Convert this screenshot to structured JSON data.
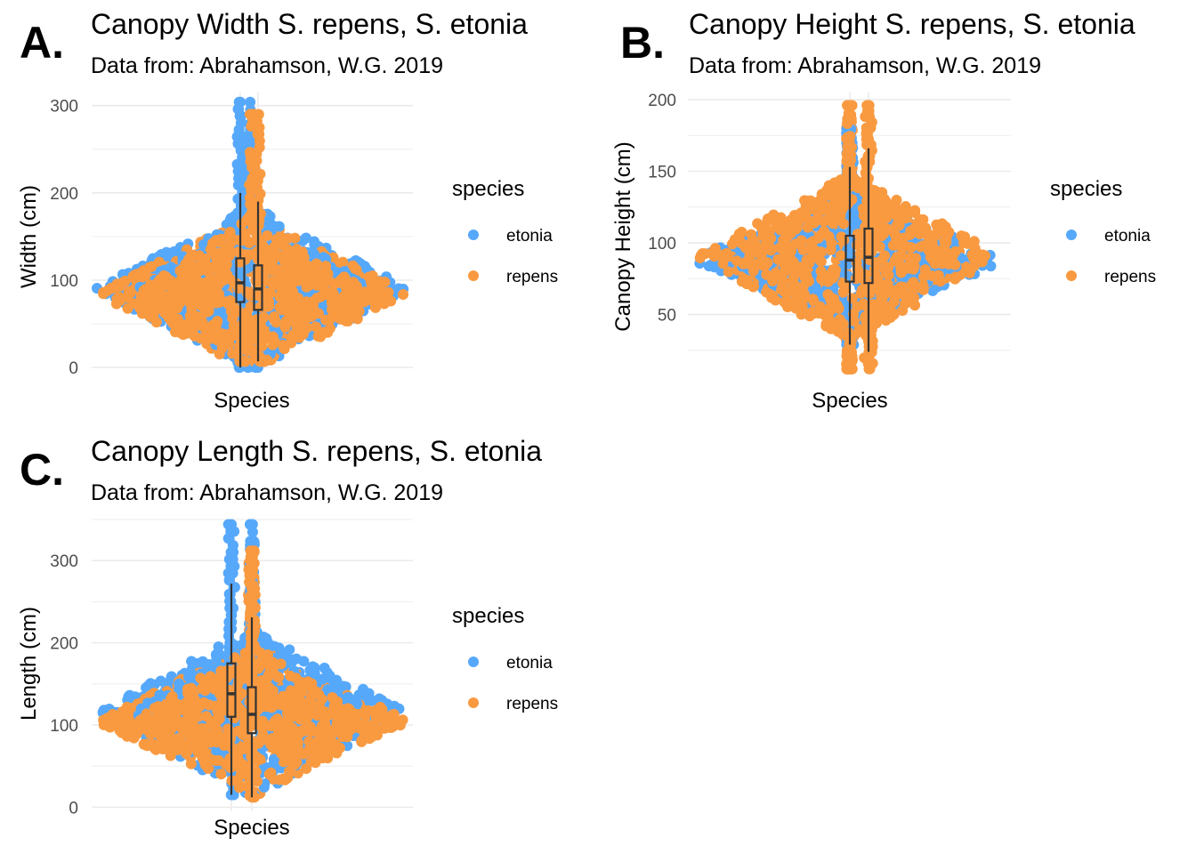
{
  "chart_data": [
    {
      "panel": "A.",
      "type": "scatter",
      "title": "Canopy  Width S. repens, S. etonia",
      "subtitle": "Data from: Abrahamson, W.G. 2019",
      "xlabel": "Species",
      "ylabel": "Width (cm)",
      "ylim": [
        -5,
        315
      ],
      "yticks": [
        0,
        100,
        200,
        300
      ],
      "grid": true,
      "legend": {
        "title": "species",
        "position": "right",
        "entries": [
          "etonia",
          "repens"
        ]
      },
      "colors": {
        "etonia": "#56a8fb",
        "repens": "#f99a41"
      },
      "series": [
        {
          "name": "etonia",
          "min": 0,
          "max": 304,
          "center": 90,
          "spread_low": 60,
          "spread_high": 110,
          "box": {
            "whisker_low": 0,
            "q1": 75,
            "median": 97,
            "q3": 125,
            "whisker_high": 200
          }
        },
        {
          "name": "repens",
          "min": 7,
          "max": 290,
          "center": 85,
          "spread_low": 55,
          "spread_high": 115,
          "box": {
            "whisker_low": 7,
            "q1": 66,
            "median": 90,
            "q3": 117,
            "whisker_high": 190
          }
        }
      ]
    },
    {
      "panel": "B.",
      "type": "scatter",
      "title": "Canopy Height S. repens, S. etonia",
      "subtitle": "Data from: Abrahamson, W.G. 2019",
      "xlabel": "Species",
      "ylabel": "Canopy Height (cm)",
      "ylim": [
        10,
        205
      ],
      "yticks": [
        50,
        100,
        150,
        200
      ],
      "grid": true,
      "legend": {
        "title": "species",
        "position": "right",
        "entries": [
          "etonia",
          "repens"
        ]
      },
      "colors": {
        "etonia": "#56a8fb",
        "repens": "#f99a41"
      },
      "series": [
        {
          "name": "etonia",
          "min": 29,
          "max": 180,
          "center": 88,
          "spread_low": 60,
          "spread_high": 110,
          "box": {
            "whisker_low": 29,
            "q1": 73,
            "median": 88,
            "q3": 105,
            "whisker_high": 153
          }
        },
        {
          "name": "repens",
          "min": 12,
          "max": 196,
          "center": 90,
          "spread_low": 55,
          "spread_high": 115,
          "box": {
            "whisker_low": 24,
            "q1": 72,
            "median": 90,
            "q3": 110,
            "whisker_high": 166
          }
        }
      ]
    },
    {
      "panel": "C.",
      "type": "scatter",
      "title": "Canopy Length S. repens, S. etonia",
      "subtitle": "Data from: Abrahamson, W.G. 2019",
      "xlabel": "Species",
      "ylabel": "Length (cm)",
      "ylim": [
        -5,
        350
      ],
      "yticks": [
        0,
        100,
        200,
        300
      ],
      "grid": true,
      "legend": {
        "title": "species",
        "position": "right",
        "entries": [
          "etonia",
          "repens"
        ]
      },
      "colors": {
        "etonia": "#56a8fb",
        "repens": "#f99a41"
      },
      "series": [
        {
          "name": "etonia",
          "min": 15,
          "max": 344,
          "center": 115,
          "spread_low": 90,
          "spread_high": 145,
          "box": {
            "whisker_low": 15,
            "q1": 110,
            "median": 138,
            "q3": 175,
            "whisker_high": 272
          }
        },
        {
          "name": "repens",
          "min": 12,
          "max": 312,
          "center": 105,
          "spread_low": 80,
          "spread_high": 130,
          "box": {
            "whisker_low": 12,
            "q1": 90,
            "median": 113,
            "q3": 146,
            "whisker_high": 231
          }
        }
      ]
    }
  ]
}
